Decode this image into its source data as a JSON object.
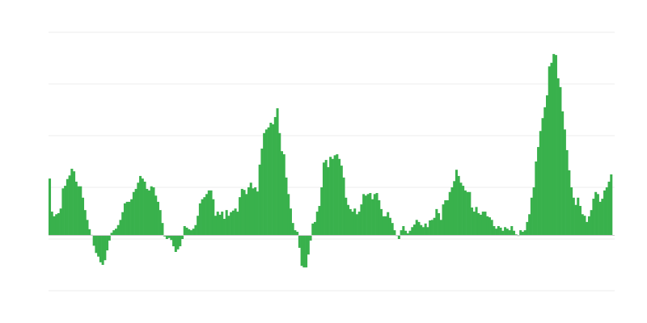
{
  "chart_data": {
    "type": "bar",
    "title": "",
    "xlabel": "",
    "ylabel": "",
    "grid": true,
    "legend": "none",
    "ylim": [
      -1.07,
      3.93
    ],
    "bar_color": "#39b14c",
    "grid_color": "#eeeeee",
    "zero_line_color": "#cccccc",
    "values": [
      1.1,
      0.46,
      0.37,
      0.41,
      0.43,
      0.52,
      0.91,
      0.96,
      1.09,
      1.16,
      1.29,
      1.24,
      1.04,
      0.95,
      0.95,
      0.73,
      0.49,
      0.3,
      0.12,
      0.01,
      -0.2,
      -0.34,
      -0.41,
      -0.52,
      -0.57,
      -0.48,
      -0.29,
      -0.1,
      0.05,
      0.1,
      0.13,
      0.2,
      0.3,
      0.45,
      0.62,
      0.65,
      0.65,
      0.7,
      0.84,
      0.9,
      1.02,
      1.15,
      1.1,
      1.04,
      0.9,
      0.87,
      0.95,
      0.93,
      0.77,
      0.65,
      0.49,
      0.24,
      -0.02,
      -0.07,
      -0.05,
      -0.09,
      -0.21,
      -0.32,
      -0.27,
      -0.21,
      -0.07,
      0.18,
      0.15,
      0.12,
      0.1,
      0.13,
      0.2,
      0.38,
      0.62,
      0.7,
      0.74,
      0.8,
      0.87,
      0.87,
      0.7,
      0.38,
      0.46,
      0.4,
      0.46,
      0.32,
      0.49,
      0.38,
      0.45,
      0.48,
      0.52,
      0.46,
      0.74,
      0.9,
      0.88,
      0.8,
      0.93,
      1.02,
      0.91,
      0.93,
      0.85,
      1.37,
      1.68,
      1.98,
      2.05,
      2.09,
      2.18,
      2.15,
      2.29,
      2.46,
      1.98,
      1.63,
      1.57,
      1.12,
      0.8,
      0.52,
      0.24,
      0.1,
      0.07,
      -0.24,
      -0.59,
      -0.62,
      -0.62,
      -0.37,
      -0.1,
      0.23,
      0.26,
      0.46,
      0.57,
      0.93,
      1.41,
      1.46,
      1.32,
      1.52,
      1.48,
      1.55,
      1.57,
      1.48,
      1.35,
      1.12,
      0.73,
      0.59,
      0.51,
      0.46,
      0.52,
      0.41,
      0.46,
      0.6,
      0.8,
      0.77,
      0.8,
      0.82,
      0.7,
      0.8,
      0.82,
      0.68,
      0.51,
      0.37,
      0.37,
      0.45,
      0.34,
      0.24,
      0.1,
      -0.01,
      -0.07,
      0.1,
      0.18,
      0.09,
      0.04,
      0.09,
      0.16,
      0.21,
      0.3,
      0.26,
      0.2,
      0.16,
      0.23,
      0.16,
      0.29,
      0.3,
      0.34,
      0.51,
      0.43,
      0.3,
      0.6,
      0.68,
      0.68,
      0.84,
      0.93,
      1.05,
      1.27,
      1.15,
      1.02,
      0.96,
      0.87,
      0.84,
      0.84,
      0.54,
      0.46,
      0.55,
      0.43,
      0.4,
      0.46,
      0.46,
      0.37,
      0.35,
      0.3,
      0.18,
      0.13,
      0.18,
      0.15,
      0.09,
      0.16,
      0.13,
      0.1,
      0.18,
      0.09,
      0.02,
      -0.01,
      0.1,
      0.07,
      0.1,
      0.26,
      0.41,
      0.73,
      0.93,
      1.43,
      1.71,
      2.02,
      2.27,
      2.48,
      2.71,
      3.27,
      3.34,
      3.51,
      3.49,
      3.04,
      2.87,
      2.4,
      2.05,
      1.65,
      1.26,
      0.93,
      0.73,
      0.59,
      0.73,
      0.57,
      0.41,
      0.38,
      0.26,
      0.37,
      0.49,
      0.71,
      0.84,
      0.8,
      0.65,
      0.71,
      0.87,
      0.93,
      1.04,
      1.18
    ]
  }
}
